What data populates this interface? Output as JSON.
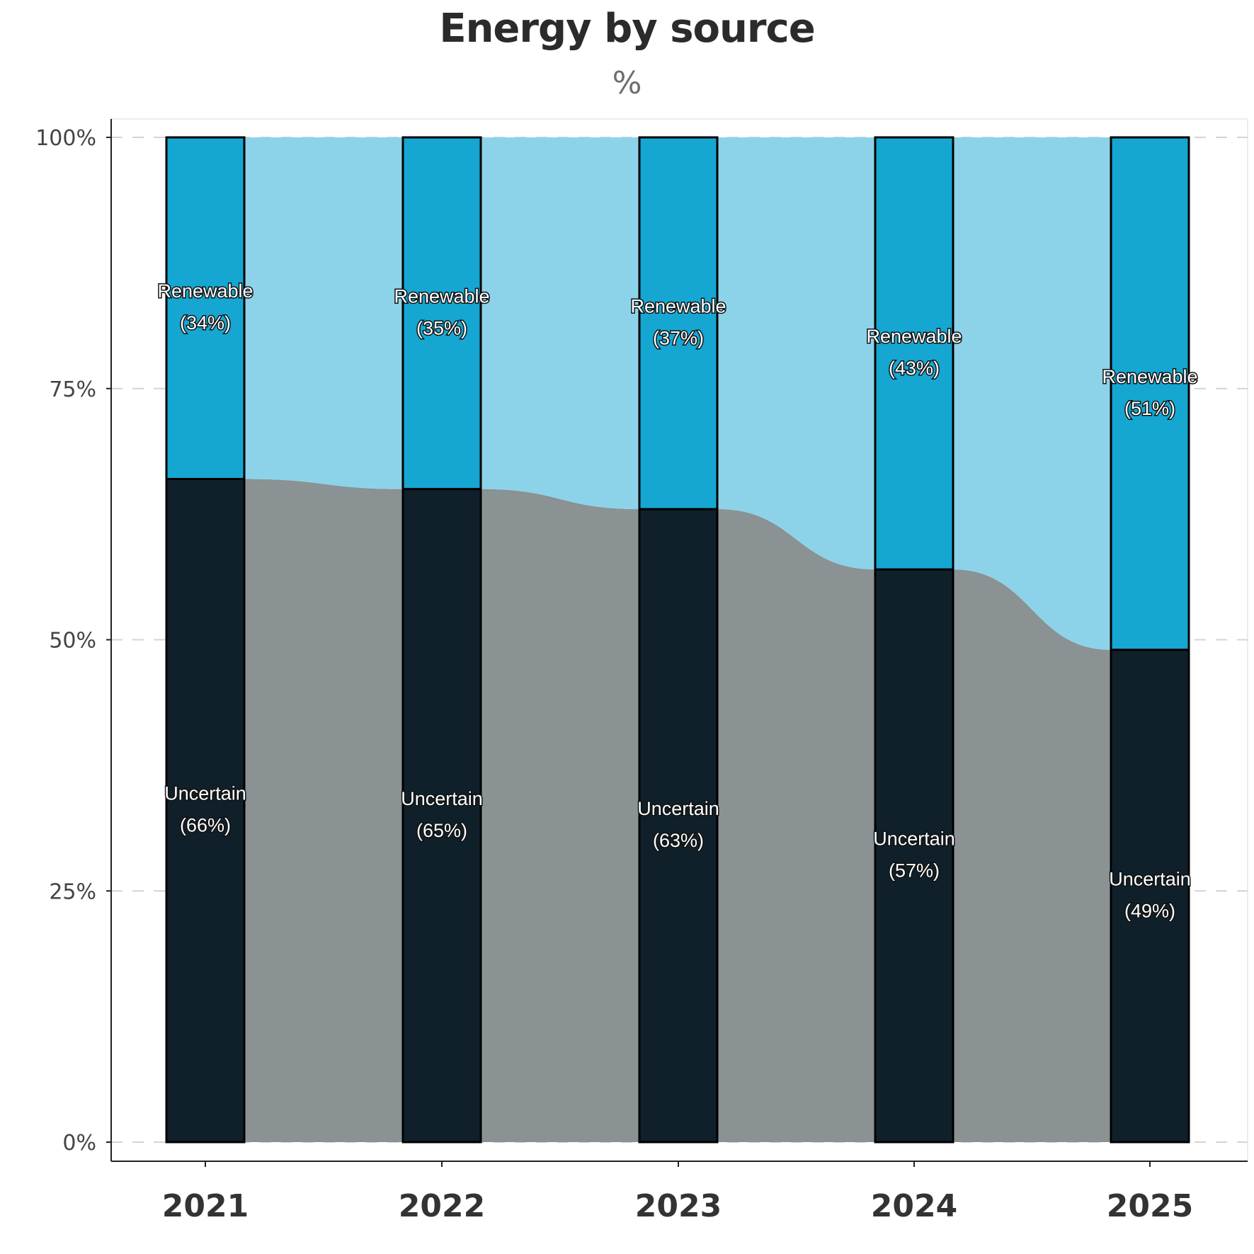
{
  "title": "Energy by source",
  "subtitle": "%",
  "chart_data": {
    "type": "bar",
    "stacked": true,
    "normalized": true,
    "categories": [
      "2021",
      "2022",
      "2023",
      "2024",
      "2025"
    ],
    "series": [
      {
        "name": "Uncertain",
        "values": [
          66,
          65,
          63,
          57,
          49
        ],
        "color": "#10202a",
        "band_color": "#8a9294",
        "labels": [
          "(66%)",
          "(65%)",
          "(63%)",
          "(57%)",
          "(49%)"
        ]
      },
      {
        "name": "Renewable",
        "values": [
          34,
          35,
          37,
          43,
          51
        ],
        "color": "#16a6d2",
        "band_color": "#8cd3ea",
        "labels": [
          "(34%)",
          "(35%)",
          "(37%)",
          "(43%)",
          "(51%)"
        ]
      }
    ],
    "ylim": [
      0,
      100
    ],
    "yticks": [
      0,
      25,
      50,
      75,
      100
    ],
    "ytick_labels": [
      "0%",
      "25%",
      "50%",
      "75%",
      "100%"
    ],
    "grid": "horizontal dashed",
    "legend": "none (labels inside bars)",
    "xlabel": "",
    "ylabel": ""
  }
}
